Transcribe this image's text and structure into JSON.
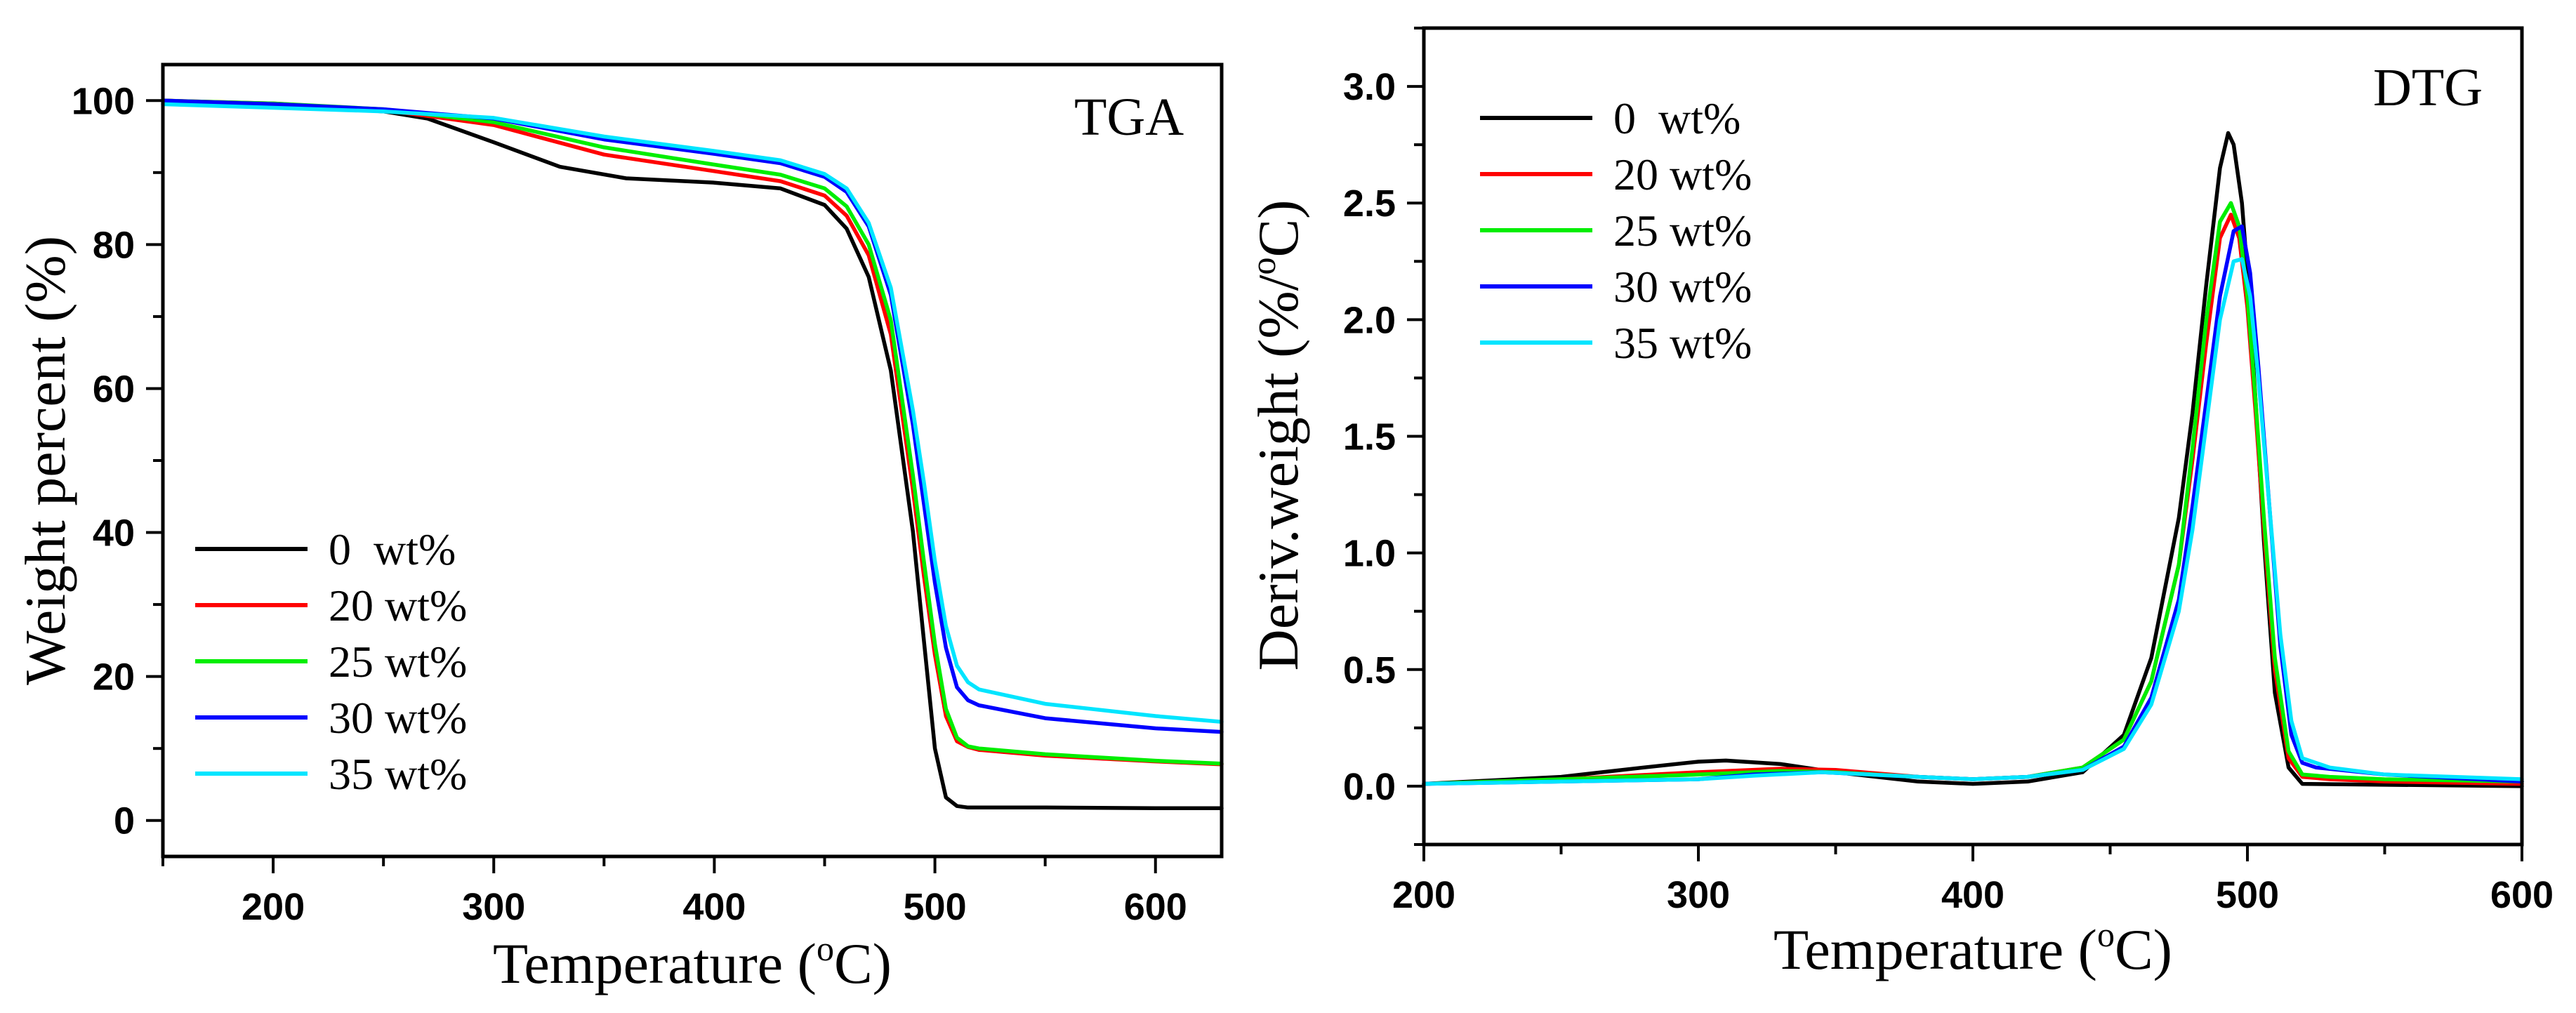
{
  "chart_data": [
    {
      "type": "line",
      "panel_label": "TGA",
      "xlabel": "Temperature (",
      "xlabel_sup": "o",
      "xlabel_tail": "C)",
      "ylabel": "Weight percent (%)",
      "xlim": [
        150,
        630
      ],
      "ylim": [
        -5,
        105
      ],
      "xticks": [
        200,
        300,
        400,
        500,
        600
      ],
      "yticks": [
        0,
        20,
        40,
        60,
        80,
        100
      ],
      "legend_position": "bottom-left",
      "series": [
        {
          "name": "0  wt%",
          "color": "#000000",
          "x": [
            150,
            200,
            250,
            270,
            300,
            330,
            360,
            400,
            430,
            450,
            460,
            470,
            480,
            490,
            495,
            500,
            505,
            510,
            515,
            550,
            600,
            630
          ],
          "y": [
            100,
            99.5,
            98.5,
            97.5,
            94.2,
            90.8,
            89.2,
            88.6,
            87.8,
            85.5,
            82.2,
            75.5,
            62.5,
            40.2,
            25,
            10,
            3.2,
            2,
            1.8,
            1.8,
            1.7,
            1.7
          ]
        },
        {
          "name": "20 wt%",
          "color": "#ff0000",
          "x": [
            150,
            200,
            250,
            300,
            350,
            400,
            430,
            450,
            460,
            470,
            480,
            490,
            495,
            500,
            505,
            510,
            515,
            520,
            550,
            600,
            630
          ],
          "y": [
            100,
            99.6,
            98.7,
            96.6,
            92.5,
            90.2,
            88.8,
            86.8,
            84,
            78.5,
            67.5,
            46,
            34,
            23,
            14.5,
            11,
            10.2,
            9.8,
            9,
            8.2,
            7.8
          ]
        },
        {
          "name": "25 wt%",
          "color": "#00ee00",
          "x": [
            150,
            200,
            250,
            300,
            350,
            400,
            430,
            450,
            460,
            470,
            480,
            490,
            495,
            500,
            505,
            510,
            515,
            520,
            550,
            600,
            630
          ],
          "y": [
            100,
            99.6,
            98.8,
            97,
            93.5,
            91.1,
            89.7,
            87.8,
            85.3,
            80,
            69.5,
            48,
            36,
            24.5,
            15.5,
            11.5,
            10.3,
            10,
            9.2,
            8.3,
            7.9
          ]
        },
        {
          "name": "30 wt%",
          "color": "#0000ff",
          "x": [
            150,
            200,
            250,
            300,
            350,
            400,
            430,
            450,
            460,
            470,
            480,
            490,
            495,
            500,
            505,
            510,
            515,
            520,
            550,
            600,
            630
          ],
          "y": [
            100,
            99.5,
            98.8,
            97.5,
            94.6,
            92.6,
            91.3,
            89.4,
            87.3,
            82.5,
            73,
            55,
            44,
            33,
            24,
            18.5,
            16.7,
            16,
            14.2,
            12.8,
            12.3
          ]
        },
        {
          "name": "35 wt%",
          "color": "#00e5ff",
          "x": [
            150,
            200,
            250,
            300,
            350,
            400,
            430,
            450,
            460,
            470,
            480,
            490,
            495,
            500,
            505,
            510,
            515,
            520,
            550,
            600,
            630
          ],
          "y": [
            99.5,
            99,
            98.5,
            97.6,
            95,
            93,
            91.7,
            89.8,
            87.8,
            83,
            74,
            57,
            47,
            36,
            27,
            21.5,
            19.2,
            18.2,
            16.2,
            14.5,
            13.7
          ]
        }
      ]
    },
    {
      "type": "line",
      "panel_label": "DTG",
      "xlabel": "Temperature (",
      "xlabel_sup": "o",
      "xlabel_tail": "C)",
      "ylabel": "Deriv.weight (%/",
      "ylabel_sup": "o",
      "ylabel_tail": "C)",
      "xlim": [
        200,
        600
      ],
      "ylim": [
        -0.25,
        3.25
      ],
      "xticks": [
        200,
        300,
        400,
        500,
        600
      ],
      "yticks": [
        0.0,
        0.5,
        1.0,
        1.5,
        2.0,
        2.5,
        3.0
      ],
      "ytick_labels": [
        "0.0",
        "0.5",
        "1.0",
        "1.5",
        "2.0",
        "2.5",
        "3.0"
      ],
      "legend_position": "top-left",
      "series": [
        {
          "name": "0  wt%",
          "color": "#000000",
          "x": [
            200,
            250,
            280,
            300,
            310,
            330,
            350,
            380,
            400,
            420,
            440,
            455,
            465,
            475,
            480,
            485,
            490,
            493,
            495,
            498,
            500,
            503,
            506,
            510,
            515,
            520,
            600
          ],
          "y": [
            0.01,
            0.04,
            0.08,
            0.105,
            0.11,
            0.095,
            0.06,
            0.02,
            0.01,
            0.02,
            0.06,
            0.22,
            0.55,
            1.15,
            1.6,
            2.15,
            2.65,
            2.8,
            2.75,
            2.5,
            2.2,
            1.65,
            1.05,
            0.4,
            0.08,
            0.01,
            0.0
          ]
        },
        {
          "name": "20 wt%",
          "color": "#ff0000",
          "x": [
            200,
            250,
            300,
            330,
            350,
            380,
            400,
            420,
            440,
            455,
            465,
            475,
            480,
            485,
            490,
            494,
            497,
            500,
            503,
            506,
            510,
            515,
            520,
            530,
            550,
            600
          ],
          "y": [
            0.01,
            0.03,
            0.06,
            0.075,
            0.07,
            0.04,
            0.03,
            0.04,
            0.08,
            0.2,
            0.45,
            0.95,
            1.4,
            1.9,
            2.35,
            2.45,
            2.35,
            2.05,
            1.6,
            1.1,
            0.5,
            0.12,
            0.04,
            0.03,
            0.02,
            0.01
          ]
        },
        {
          "name": "25 wt%",
          "color": "#00ee00",
          "x": [
            200,
            250,
            300,
            330,
            350,
            380,
            400,
            420,
            440,
            455,
            465,
            475,
            480,
            485,
            490,
            494,
            497,
            500,
            503,
            506,
            510,
            515,
            520,
            530,
            550,
            600
          ],
          "y": [
            0.01,
            0.03,
            0.05,
            0.065,
            0.06,
            0.04,
            0.03,
            0.04,
            0.08,
            0.2,
            0.45,
            0.95,
            1.45,
            2.0,
            2.42,
            2.5,
            2.4,
            2.1,
            1.65,
            1.15,
            0.55,
            0.15,
            0.05,
            0.04,
            0.03,
            0.02
          ]
        },
        {
          "name": "30 wt%",
          "color": "#0000ff",
          "x": [
            200,
            250,
            300,
            320,
            345,
            380,
            400,
            420,
            440,
            455,
            465,
            475,
            480,
            485,
            490,
            495,
            498,
            501,
            504,
            508,
            512,
            516,
            520,
            525,
            550,
            600
          ],
          "y": [
            0.01,
            0.02,
            0.03,
            0.05,
            0.06,
            0.04,
            0.03,
            0.04,
            0.07,
            0.17,
            0.38,
            0.8,
            1.2,
            1.65,
            2.1,
            2.38,
            2.4,
            2.2,
            1.8,
            1.2,
            0.6,
            0.22,
            0.1,
            0.08,
            0.05,
            0.02
          ]
        },
        {
          "name": "35 wt%",
          "color": "#00e5ff",
          "x": [
            200,
            250,
            300,
            320,
            345,
            380,
            400,
            420,
            440,
            455,
            465,
            475,
            480,
            485,
            490,
            495,
            498,
            501,
            504,
            508,
            512,
            516,
            520,
            530,
            550,
            600
          ],
          "y": [
            0.01,
            0.02,
            0.03,
            0.045,
            0.06,
            0.04,
            0.03,
            0.04,
            0.07,
            0.16,
            0.35,
            0.75,
            1.1,
            1.55,
            2.0,
            2.25,
            2.26,
            2.1,
            1.75,
            1.2,
            0.65,
            0.28,
            0.12,
            0.08,
            0.05,
            0.03
          ]
        }
      ]
    }
  ]
}
